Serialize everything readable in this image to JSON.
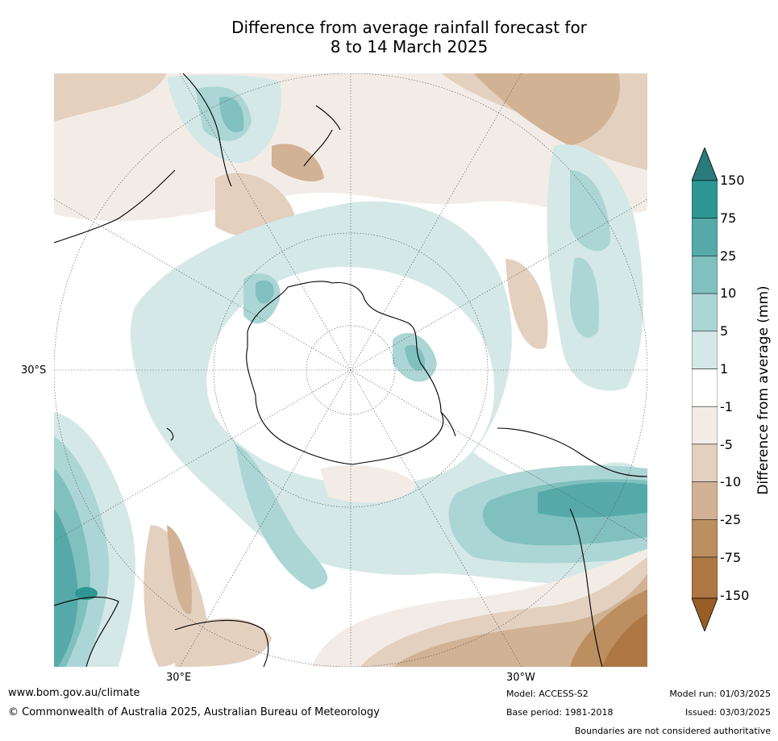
{
  "title": {
    "line1": "Difference from average rainfall forecast for",
    "line2": "8 to 14 March 2025"
  },
  "map": {
    "projection": "south polar stereographic",
    "lat_labels": [
      "30°S"
    ],
    "lon_labels": [
      "30°E",
      "30°W"
    ]
  },
  "legend": {
    "title": "Difference from average (mm)",
    "labels": [
      "150",
      "75",
      "25",
      "10",
      "5",
      "1",
      "-1",
      "-5",
      "-10",
      "-25",
      "-75",
      "-150"
    ],
    "colors": {
      "gt150": "#2a7b7b",
      "75_150": "#2e9793",
      "25_75": "#55aaa9",
      "10_25": "#80c0bf",
      "5_10": "#acd6d5",
      "1_5": "#d4e8e7",
      "m1_1": "#ffffff",
      "m5_m1": "#f3ece6",
      "m10_m5": "#e3d0bf",
      "m25_m10": "#d1b294",
      "m75_m25": "#bc8e60",
      "m150_m75": "#ad7743",
      "lt_m150": "#985e25"
    }
  },
  "footer": {
    "url": "www.bom.gov.au/climate",
    "copyright": "© Commonwealth of Australia 2025, Australian Bureau of Meteorology",
    "model": "Model: ACCESS-S2",
    "base_period": "Base period: 1981-2018",
    "model_run": "Model run: 01/03/2025",
    "issued": "Issued: 03/03/2025",
    "disclaimer": "Boundaries are not considered authoritative"
  }
}
